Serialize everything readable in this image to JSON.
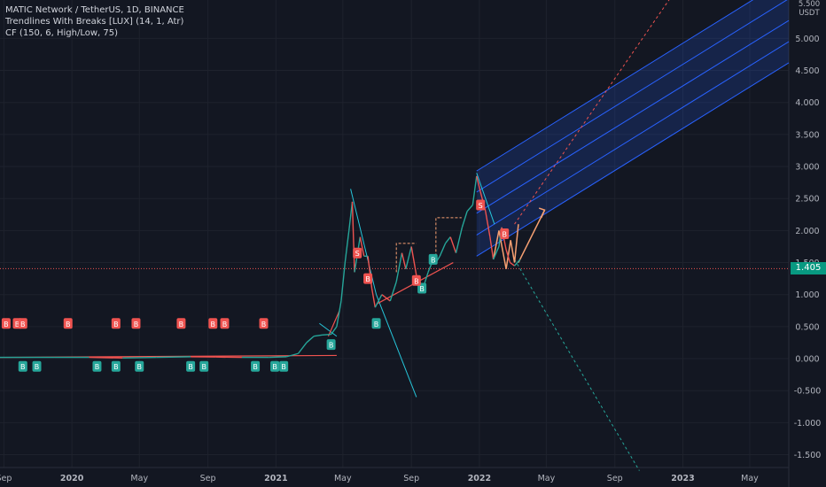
{
  "legend": {
    "symbol_line": "MATIC Network / TetherUS, 1D, BINANCE",
    "indicator_1": "Trendlines With Breaks [LUX] (14, 1, Atr)",
    "indicator_2": "CF (150, 6, High/Low, 75)"
  },
  "price_axis": {
    "unit": "USDT",
    "top_label": "5.500",
    "last_price": "1.405"
  },
  "colors": {
    "background": "#131722",
    "grid": "#1e222d",
    "up": "#26a69a",
    "down": "#ef5350",
    "channel_fill": "#2962ff",
    "channel_line": "#2962ff",
    "last_price": "#089981",
    "cyan_line": "#26c6da",
    "orange_line": "#f7a072"
  },
  "chart_data": {
    "type": "line",
    "title": "MATIC Network / TetherUS, 1D, BINANCE",
    "xlabel": "",
    "ylabel": "",
    "ylim": [
      -1.7,
      5.6
    ],
    "xlim": [
      "2019-08-25",
      "2023-07-10"
    ],
    "y_ticks": [
      -1.5,
      -1.0,
      -0.5,
      0.0,
      0.5,
      1.0,
      1.5,
      2.0,
      2.5,
      3.0,
      3.5,
      4.0,
      4.5,
      5.0
    ],
    "y_tick_labels": [
      "-1.500",
      "-1.000",
      "-0.500",
      "0.000",
      "0.500",
      "1.000",
      "1.500",
      "2.000",
      "2.500",
      "3.000",
      "3.500",
      "4.000",
      "4.500",
      "5.000"
    ],
    "x_ticks": [
      {
        "label": "Sep",
        "date": "2019-09-01"
      },
      {
        "label": "2020",
        "date": "2020-01-01"
      },
      {
        "label": "May",
        "date": "2020-05-01"
      },
      {
        "label": "Sep",
        "date": "2020-09-01"
      },
      {
        "label": "2021",
        "date": "2021-01-01"
      },
      {
        "label": "May",
        "date": "2021-05-01"
      },
      {
        "label": "Sep",
        "date": "2021-09-01"
      },
      {
        "label": "2022",
        "date": "2022-01-01"
      },
      {
        "label": "May",
        "date": "2022-05-01"
      },
      {
        "label": "Sep",
        "date": "2022-09-01"
      },
      {
        "label": "2023",
        "date": "2023-01-01"
      },
      {
        "label": "May",
        "date": "2023-05-01"
      }
    ],
    "last_price": 1.405,
    "grid": true,
    "series": [
      {
        "points": [
          [
            "2019-08-25",
            0.02
          ],
          [
            "2019-10-01",
            0.02
          ],
          [
            "2019-12-01",
            0.02
          ],
          [
            "2020-02-01",
            0.02
          ],
          [
            "2020-04-01",
            0.01
          ],
          [
            "2020-06-01",
            0.02
          ],
          [
            "2020-08-01",
            0.03
          ],
          [
            "2020-09-15",
            0.025
          ],
          [
            "2020-11-01",
            0.02
          ],
          [
            "2020-12-20",
            0.02
          ],
          [
            "2021-01-20",
            0.03
          ],
          [
            "2021-02-10",
            0.08
          ],
          [
            "2021-02-25",
            0.25
          ],
          [
            "2021-03-10",
            0.35
          ],
          [
            "2021-03-25",
            0.37
          ],
          [
            "2021-04-10",
            0.38
          ],
          [
            "2021-04-20",
            0.5
          ],
          [
            "2021-04-28",
            0.9
          ],
          [
            "2021-05-05",
            1.5
          ],
          [
            "2021-05-12",
            2.0
          ],
          [
            "2021-05-18",
            2.45
          ],
          [
            "2021-05-22",
            1.35
          ],
          [
            "2021-06-01",
            1.9
          ],
          [
            "2021-06-08",
            1.6
          ],
          [
            "2021-06-15",
            1.6
          ],
          [
            "2021-06-22",
            1.1
          ],
          [
            "2021-06-28",
            0.8
          ],
          [
            "2021-07-10",
            1.0
          ],
          [
            "2021-07-25",
            0.9
          ],
          [
            "2021-08-05",
            1.2
          ],
          [
            "2021-08-15",
            1.65
          ],
          [
            "2021-08-22",
            1.4
          ],
          [
            "2021-09-01",
            1.75
          ],
          [
            "2021-09-10",
            1.3
          ],
          [
            "2021-09-22",
            1.1
          ],
          [
            "2021-10-01",
            1.35
          ],
          [
            "2021-10-08",
            1.5
          ],
          [
            "2021-10-15",
            1.5
          ],
          [
            "2021-10-22",
            1.6
          ],
          [
            "2021-11-01",
            1.8
          ],
          [
            "2021-11-10",
            1.9
          ],
          [
            "2021-11-20",
            1.65
          ],
          [
            "2021-12-01",
            2.05
          ],
          [
            "2021-12-10",
            2.3
          ],
          [
            "2021-12-20",
            2.4
          ],
          [
            "2021-12-27",
            2.85
          ],
          [
            "2022-01-03",
            2.6
          ],
          [
            "2022-01-12",
            2.3
          ],
          [
            "2022-01-20",
            1.9
          ],
          [
            "2022-01-26",
            1.55
          ],
          [
            "2022-02-05",
            1.75
          ],
          [
            "2022-02-10",
            2.05
          ],
          [
            "2022-02-18",
            1.7
          ],
          [
            "2022-02-25",
            1.5
          ],
          [
            "2022-03-05",
            1.45
          ],
          [
            "2022-03-15",
            1.55
          ]
        ]
      }
    ]
  }
}
